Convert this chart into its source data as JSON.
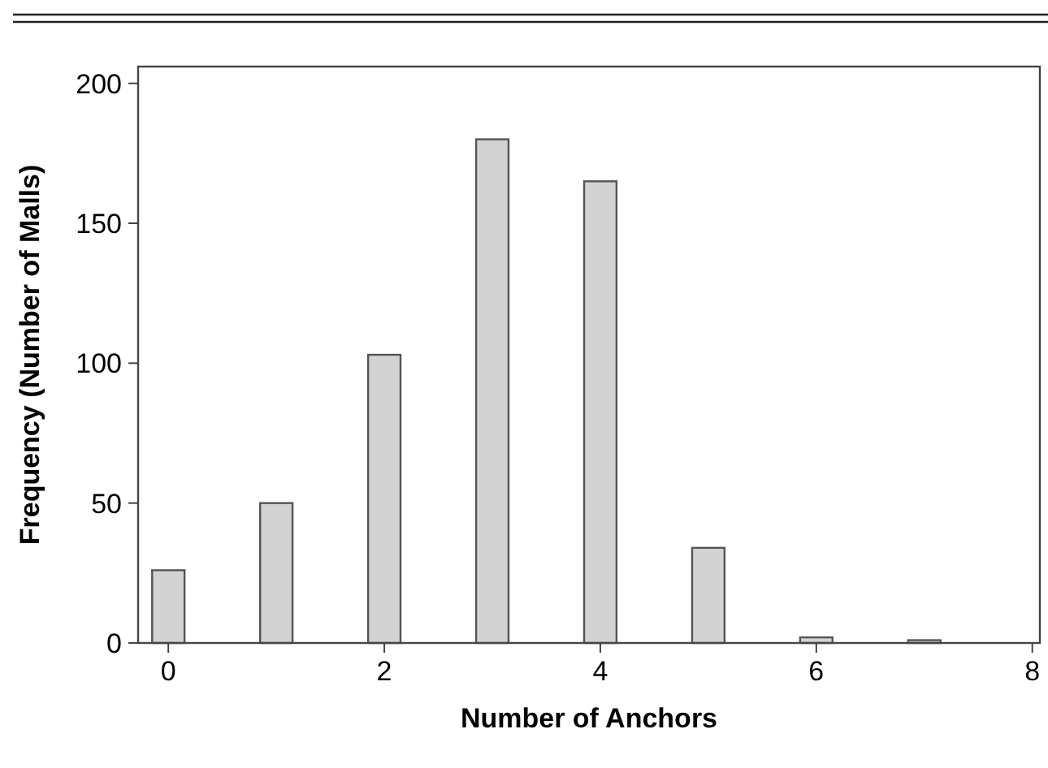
{
  "chart_data": {
    "type": "bar",
    "xlabel": "Number of Anchors",
    "ylabel": "Frequency (Number of Malls)",
    "x": [
      0,
      1,
      2,
      3,
      4,
      5,
      6,
      7
    ],
    "values": [
      26,
      50,
      103,
      180,
      165,
      34,
      2,
      1
    ],
    "color": "#d3d3d3",
    "xlim": [
      -0.28,
      8.07
    ],
    "xticks": [
      0,
      2,
      4,
      6,
      8
    ],
    "ylim": [
      0,
      206
    ],
    "yticks": [
      0,
      50,
      100,
      150,
      200
    ],
    "grid": false
  }
}
